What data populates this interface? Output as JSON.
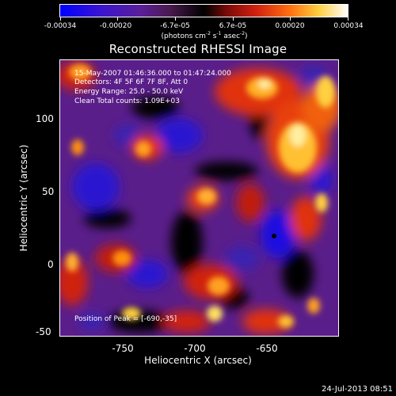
{
  "colorbar": {
    "ticks": [
      "-0.00034",
      "-0.00020",
      "-6.7e-05",
      "6.7e-05",
      "0.00020",
      "0.00034"
    ],
    "units_prefix": "(photons cm",
    "units_sup1": "-2",
    "units_mid": " s",
    "units_sup2": "-1",
    "units_mid2": " asec",
    "units_sup3": "-2",
    "units_suffix": ")",
    "colors": [
      "#0000ff",
      "#5a1e9a",
      "#000000",
      "#d02010",
      "#ff7010",
      "#ffffff"
    ]
  },
  "title": "Reconstructed RHESSI Image",
  "info": {
    "time_range": "15-May-2007 01:46:36.000 to 01:47:24.000",
    "detectors": "Detectors: 4F 5F 6F 7F 8F, Att 0",
    "energy": "Energy Range: 25.0 - 50.0 keV",
    "method": "Clean     Total counts: 1.09E+03",
    "peak": "Position of Peak = [-690,-35]"
  },
  "axes": {
    "xlabel": "Heliocentric X (arcsec)",
    "ylabel": "Heliocentric Y (arcsec)",
    "xticks": [
      "-750",
      "-700",
      "-650"
    ],
    "yticks": [
      "100",
      "50",
      "0",
      "-50"
    ]
  },
  "timestamp": "24-Jul-2013 08:51"
}
